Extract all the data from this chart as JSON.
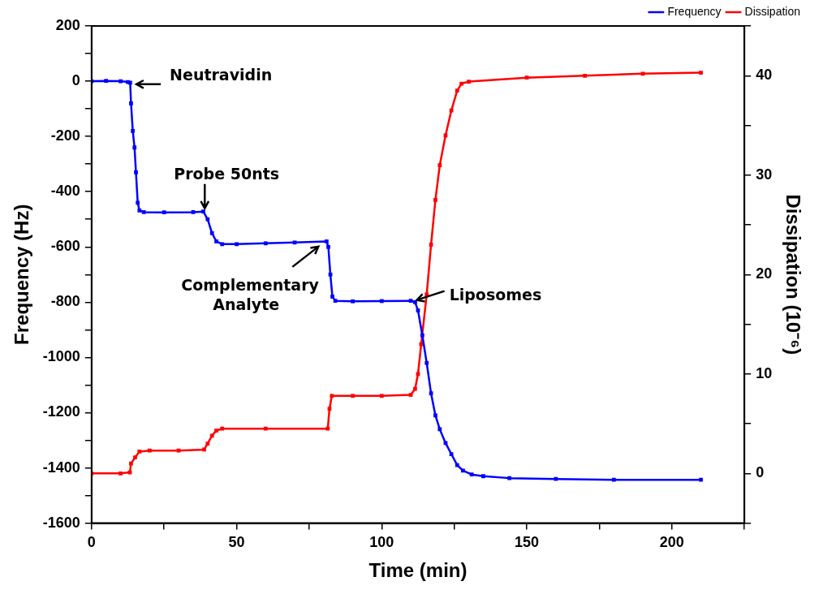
{
  "chart_data": {
    "type": "line",
    "xlabel": "Time (min)",
    "ylabel": "Frequency (Hz)",
    "y2label": "Dissipation (10⁻⁶)",
    "xlim": [
      0,
      225
    ],
    "xticks": [
      0,
      {
        "value": 25,
        "label": null
      },
      50,
      {
        "value": 75,
        "label": null
      },
      100,
      {
        "value": 125,
        "label": null
      },
      150,
      {
        "value": 175,
        "label": null
      },
      200,
      {
        "value": 225,
        "label": null
      }
    ],
    "ylim": [
      -1600,
      200
    ],
    "yticks": [
      -1600,
      {
        "value": -1500,
        "label": null
      },
      -1400,
      {
        "value": -1300,
        "label": null
      },
      -1200,
      {
        "value": -1100,
        "label": null
      },
      -1000,
      {
        "value": -900,
        "label": null
      },
      -800,
      {
        "value": -700,
        "label": null
      },
      -600,
      {
        "value": -500,
        "label": null
      },
      -400,
      {
        "value": -300,
        "label": null
      },
      -200,
      {
        "value": -100,
        "label": null
      },
      0,
      {
        "value": 100,
        "label": null
      },
      200
    ],
    "y2lim": [
      -5,
      45
    ],
    "y2ticks": [
      {
        "value": -5,
        "label": null
      },
      0,
      {
        "value": 5,
        "label": null
      },
      10,
      {
        "value": 15,
        "label": null
      },
      20,
      {
        "value": 25,
        "label": null
      },
      30,
      {
        "value": 35,
        "label": null
      },
      40,
      {
        "value": 45,
        "label": null
      }
    ],
    "grid": false,
    "legend": "top right",
    "marker": "square",
    "line_style": "solid",
    "series": [
      {
        "name": "Frequency",
        "color": "#0000ff",
        "x": [
          0,
          5,
          10,
          12.5,
          13.3,
          13.6,
          14.2,
          14.8,
          15.3,
          15.9,
          16.5,
          18,
          25,
          35,
          38.5,
          40,
          41.5,
          43,
          45,
          50,
          60,
          70,
          81,
          81.6,
          82.3,
          83,
          84,
          90,
          100,
          110,
          111.5,
          112.5,
          114,
          115.5,
          117,
          118.5,
          120,
          122,
          124,
          126,
          128,
          131,
          135,
          144,
          160,
          180,
          210
        ],
        "values": [
          0,
          1,
          0,
          -3,
          -5,
          -80,
          -180,
          -240,
          -330,
          -440,
          -468,
          -474,
          -475,
          -474,
          -472,
          -500,
          -550,
          -580,
          -590,
          -590,
          -587,
          -584,
          -580,
          -600,
          -700,
          -780,
          -795,
          -797,
          -796,
          -795,
          -800,
          -830,
          -920,
          -1020,
          -1130,
          -1210,
          -1260,
          -1310,
          -1350,
          -1390,
          -1410,
          -1424,
          -1430,
          -1437,
          -1440,
          -1443,
          -1443
        ]
      },
      {
        "name": "Dissipation",
        "color": "#ff0000",
        "axis": "y2",
        "x": [
          0,
          10,
          13.2,
          13.6,
          15,
          16.5,
          20,
          30,
          38.8,
          40,
          41.5,
          43,
          45,
          60,
          81.4,
          82,
          82.8,
          90,
          100,
          110,
          111.5,
          112.5,
          113.6,
          115.5,
          117,
          118.5,
          120,
          122,
          124,
          126,
          127.5,
          130,
          150,
          170,
          190,
          210
        ],
        "values": [
          0,
          0,
          0.1,
          1,
          1.6,
          2.2,
          2.3,
          2.3,
          2.4,
          3,
          3.8,
          4.3,
          4.5,
          4.5,
          4.5,
          6.5,
          7.8,
          7.8,
          7.8,
          7.9,
          8.5,
          10,
          13,
          18,
          23,
          27.5,
          31,
          34,
          36.5,
          38.5,
          39.2,
          39.4,
          39.8,
          40,
          40.2,
          40.3
        ]
      }
    ],
    "annotations": [
      {
        "text": "Neutravidin",
        "x": 13.5,
        "y": -5
      },
      {
        "text": "Probe 50nts",
        "x": 39,
        "y": -475
      },
      {
        "text": "Complementary Analyte",
        "x": 79,
        "y": -590
      },
      {
        "text": "Liposomes",
        "x": 111,
        "y": -795
      }
    ]
  }
}
